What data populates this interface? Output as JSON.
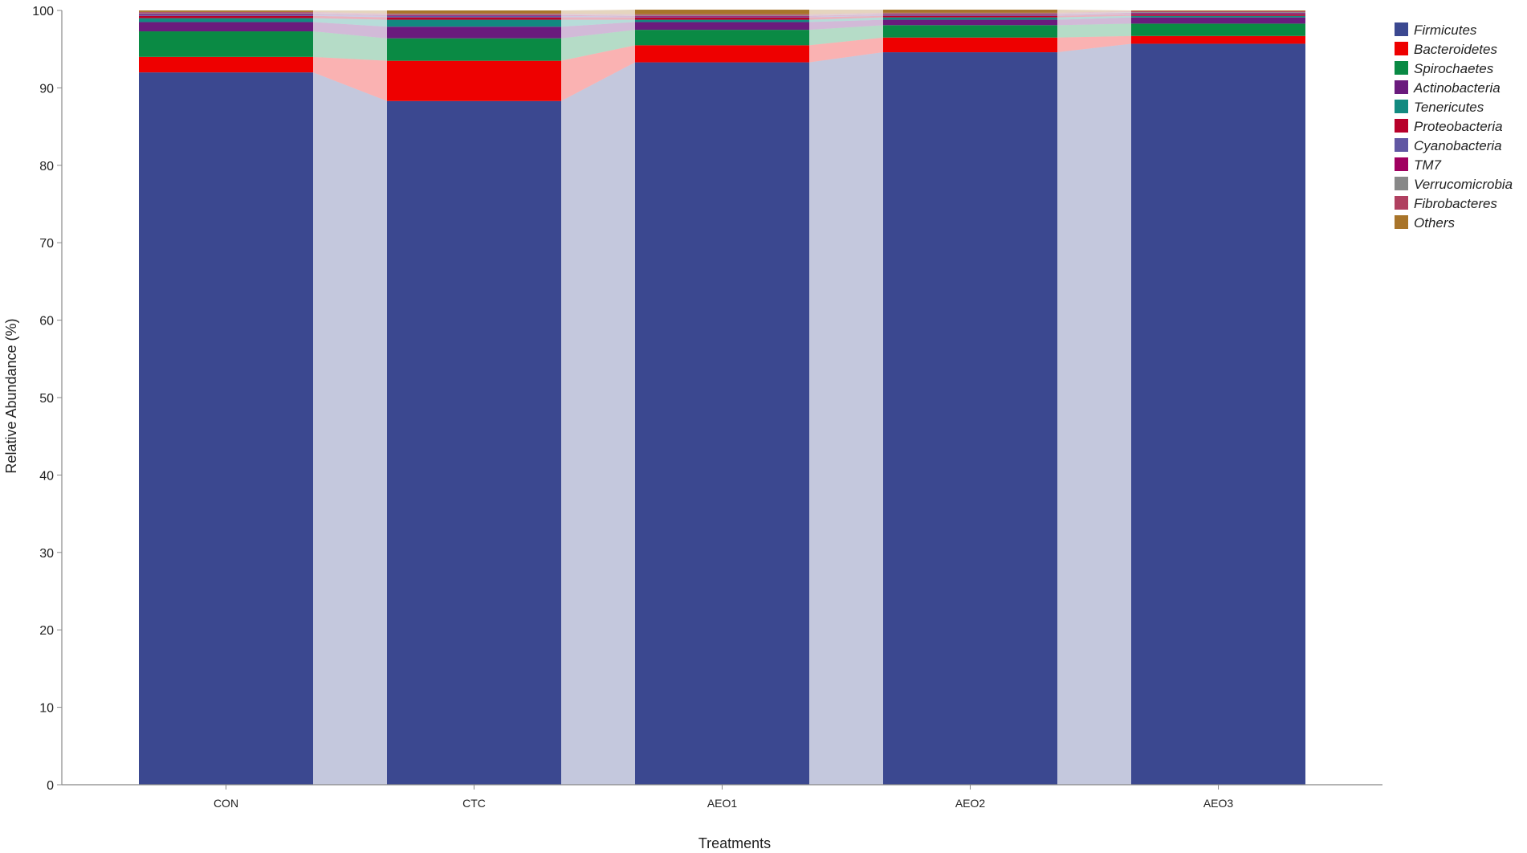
{
  "chart_data": {
    "type": "bar",
    "stacked": true,
    "xlabel": "Treatments",
    "ylabel": "Relative Abundance (%)",
    "ylim": [
      0,
      100
    ],
    "yticks": [
      0,
      10,
      20,
      30,
      40,
      50,
      60,
      70,
      80,
      90,
      100
    ],
    "categories": [
      "CON",
      "CTC",
      "AEO1",
      "AEO2",
      "AEO3"
    ],
    "legend_position": "right",
    "series": [
      {
        "name": "Firmicutes",
        "color": "#3b4890",
        "values": [
          92.0,
          88.3,
          93.3,
          94.6,
          95.7
        ]
      },
      {
        "name": "Bacteroidetes",
        "color": "#ee0000",
        "values": [
          2.0,
          5.2,
          2.2,
          1.9,
          1.0
        ]
      },
      {
        "name": "Spirochaetes",
        "color": "#0a8a44",
        "values": [
          3.3,
          2.9,
          2.0,
          1.6,
          1.6
        ]
      },
      {
        "name": "Actinobacteria",
        "color": "#6a1b7d",
        "values": [
          1.2,
          1.5,
          1.0,
          0.7,
          0.8
        ]
      },
      {
        "name": "Tenericutes",
        "color": "#128a80",
        "values": [
          0.5,
          0.9,
          0.3,
          0.3,
          0.2
        ]
      },
      {
        "name": "Proteobacteria",
        "color": "#b8002a",
        "values": [
          0.3,
          0.3,
          0.3,
          0.2,
          0.2
        ]
      },
      {
        "name": "Cyanobacteria",
        "color": "#6157a3",
        "values": [
          0.2,
          0.2,
          0.1,
          0.1,
          0.1
        ]
      },
      {
        "name": "TM7",
        "color": "#a00060",
        "values": [
          0.1,
          0.1,
          0.1,
          0.1,
          0.1
        ]
      },
      {
        "name": "Verrucomicrobia",
        "color": "#888888",
        "values": [
          0.1,
          0.1,
          0.1,
          0.1,
          0.1
        ]
      },
      {
        "name": "Fibrobacteres",
        "color": "#b04060",
        "values": [
          0.1,
          0.1,
          0.1,
          0.1,
          0.1
        ]
      },
      {
        "name": "Others",
        "color": "#a8742a",
        "values": [
          0.2,
          0.4,
          0.6,
          0.4,
          0.1
        ]
      }
    ]
  }
}
